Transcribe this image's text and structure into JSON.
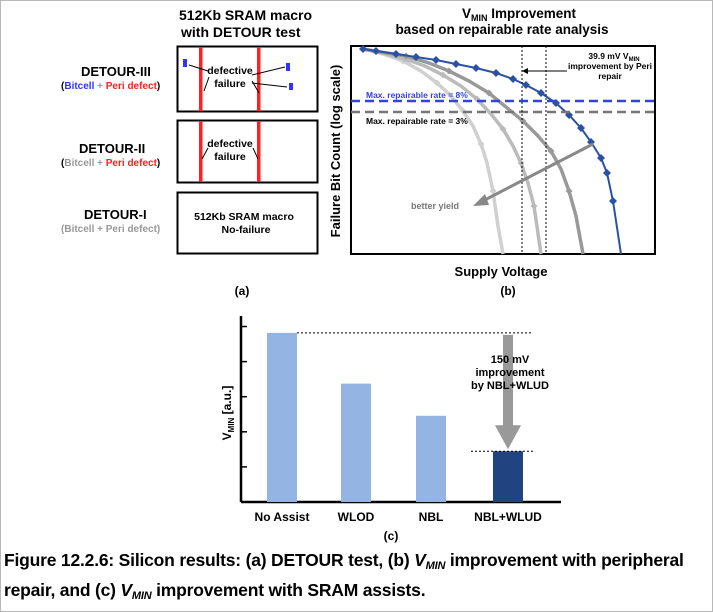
{
  "panel_a": {
    "title_line1": "512Kb SRAM macro",
    "title_line2": "with DETOUR test",
    "rows": [
      {
        "name": "DETOUR-III",
        "legend_left": "Bitcell",
        "plus": " + ",
        "legend_right": "Peri defect",
        "box_line1": "defective",
        "box_line2": "failure"
      },
      {
        "name": "DETOUR-II",
        "legend_left": "Bitcell",
        "plus": " + ",
        "legend_right": "Peri defect",
        "box_line1": "defective",
        "box_line2": "failure"
      },
      {
        "name": "DETOUR-I",
        "legend_left": "Bitcell",
        "plus": " + ",
        "legend_right": "Peri defect",
        "box_line1": "512Kb SRAM macro",
        "box_line2": "No-failure"
      }
    ],
    "label": "(a)",
    "colors": {
      "bitcell": "#3333ff",
      "peri": "#ff2020",
      "gray": "#999999"
    }
  },
  "panel_b": {
    "title_v": "V",
    "title_sub": "MIN",
    "title_rest": " Improvement",
    "title_line2": "based on repairable rate analysis",
    "annotation_line1a": "39.9 mV V",
    "annotation_sub": "MIN",
    "annotation_line2": "improvement by Peri",
    "annotation_line3": "repair",
    "max_rate_8": "Max. repairable rate = 8%",
    "max_rate_3": "Max. repairable rate = 3%",
    "better_yield": "better yield",
    "label": "(b)"
  },
  "panel_c": {
    "label": "(c)",
    "improvement_line1": "150 mV",
    "improvement_line2": "improvement",
    "improvement_line3": "by NBL+WLUD"
  },
  "chart_data": [
    {
      "type": "line",
      "xlabel": "Supply Voltage",
      "ylabel": "Failure Bit Count (log scale)",
      "note": "No numeric tick labels; curves described qualitatively (relative positions).",
      "series": [
        {
          "color": "#2952a3",
          "marker": "diamond"
        },
        {
          "color": "#999999",
          "marker": "diamond"
        },
        {
          "color": "#bbbbbb",
          "marker": "diamond"
        },
        {
          "color": "#d0d0d0",
          "marker": "diamond"
        }
      ],
      "annotations": [
        "Max. repairable rate = 8%",
        "Max. repairable rate = 3%",
        "39.9 mV VMIN improvement by Peri repair",
        "better yield"
      ]
    },
    {
      "type": "bar",
      "ylabel_v": "V",
      "ylabel_sub": "MIN",
      "ylabel_rest": " [a.u.]",
      "categories": [
        "No Assist",
        "WLOD",
        "NBL",
        "NBL+WLUD"
      ],
      "values": [
        1.0,
        0.7,
        0.51,
        0.3
      ],
      "ylim": [
        0,
        1.1
      ],
      "bar_colors": [
        "#94b4e4",
        "#94b4e4",
        "#94b4e4",
        "#1f4480"
      ]
    }
  ],
  "caption": {
    "part1": "Figure 12.2.6: Silicon results: (a) DETOUR test, (b) ",
    "v1": "V",
    "sub1": "MIN",
    "part2": " improvement with peripheral repair, and (c) ",
    "v2": "V",
    "sub2": "MIN",
    "part3": " improvement with SRAM assists."
  }
}
